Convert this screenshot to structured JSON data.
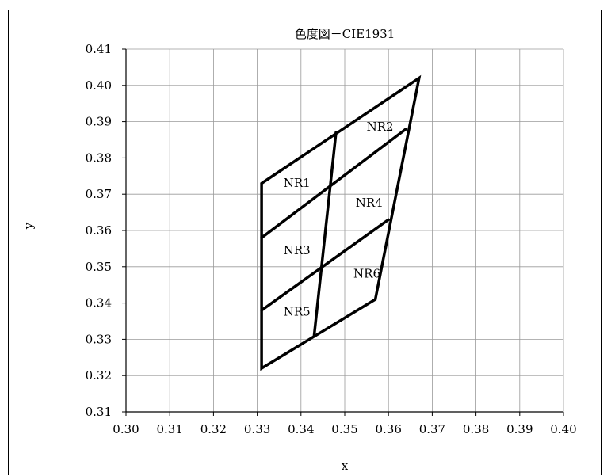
{
  "chart_data": {
    "type": "line",
    "title": "色度図－CIE1931",
    "xlabel": "x",
    "ylabel": "y",
    "xlim": [
      0.3,
      0.4
    ],
    "ylim": [
      0.31,
      0.41
    ],
    "x_ticks": [
      "0.30",
      "0.31",
      "0.32",
      "0.33",
      "0.34",
      "0.35",
      "0.36",
      "0.37",
      "0.38",
      "0.39",
      "0.40"
    ],
    "y_ticks": [
      "0.41",
      "0.40",
      "0.39",
      "0.38",
      "0.37",
      "0.36",
      "0.35",
      "0.34",
      "0.33",
      "0.32",
      "0.31"
    ],
    "grid": true,
    "series": [
      {
        "points": [
          [
            0.331,
            0.373
          ],
          [
            0.367,
            0.402
          ],
          [
            0.357,
            0.341
          ],
          [
            0.331,
            0.322
          ],
          [
            0.331,
            0.373
          ]
        ]
      },
      {
        "points": [
          [
            0.331,
            0.358
          ],
          [
            0.364,
            0.388
          ]
        ]
      },
      {
        "points": [
          [
            0.331,
            0.338
          ],
          [
            0.36,
            0.363
          ]
        ]
      },
      {
        "points": [
          [
            0.348,
            0.387
          ],
          [
            0.343,
            0.331
          ]
        ]
      }
    ],
    "region_labels": [
      {
        "text": "NR1",
        "x": 0.336,
        "y": 0.372
      },
      {
        "text": "NR2",
        "x": 0.355,
        "y": 0.3875
      },
      {
        "text": "NR3",
        "x": 0.336,
        "y": 0.3535
      },
      {
        "text": "NR4",
        "x": 0.3525,
        "y": 0.3665
      },
      {
        "text": "NR5",
        "x": 0.336,
        "y": 0.3365
      },
      {
        "text": "NR6",
        "x": 0.352,
        "y": 0.347
      }
    ]
  }
}
